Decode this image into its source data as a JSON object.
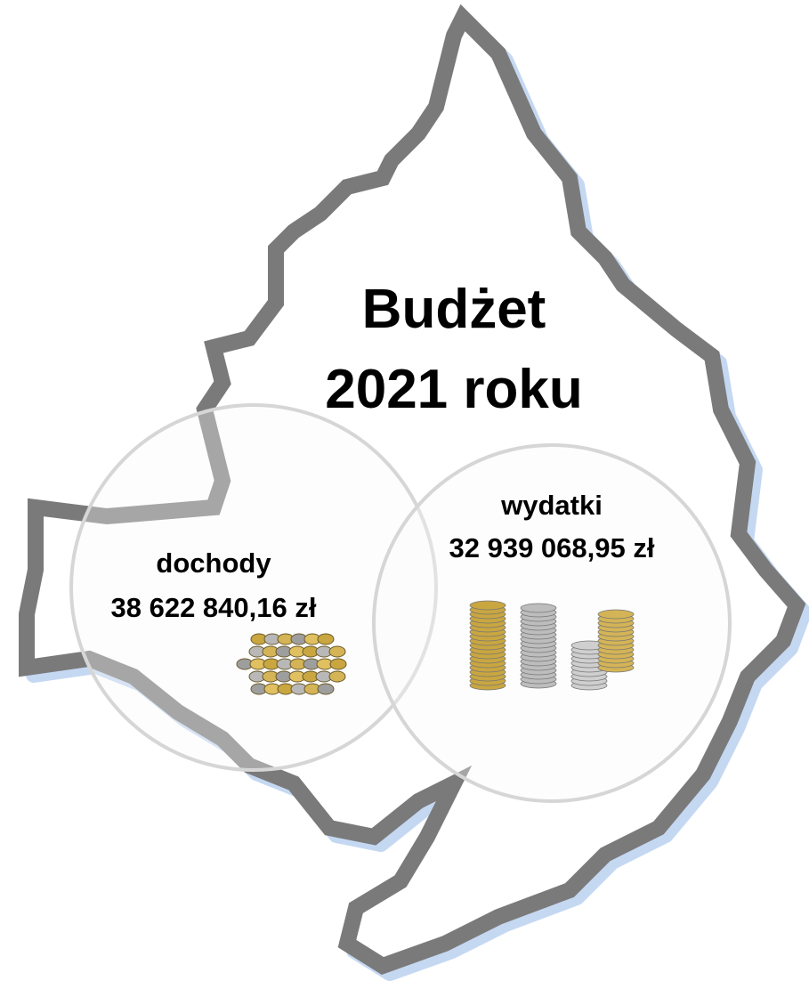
{
  "title": {
    "lines": [
      "Budżet",
      "2021 roku"
    ]
  },
  "income": {
    "label": "dochody",
    "amount": "38 622 840,16 zł"
  },
  "expenses": {
    "label": "wydatki",
    "amount": "32 939 068,95 zł"
  }
}
